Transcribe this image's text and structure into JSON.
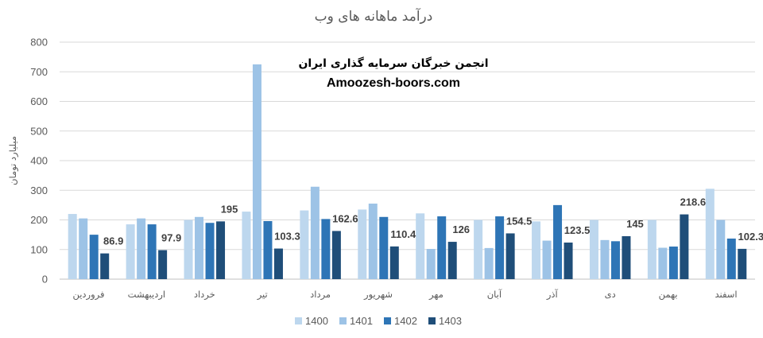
{
  "chart_data": {
    "type": "bar",
    "title": "درآمد ماهانه های وب",
    "ylabel": "میلیارد تومان",
    "xlabel": "",
    "ylim": [
      0,
      800
    ],
    "yticks": [
      0,
      100,
      200,
      300,
      400,
      500,
      600,
      700,
      800
    ],
    "grid": true,
    "legend_position": "bottom",
    "categories": [
      "فروردین",
      "اردیبهشت",
      "خرداد",
      "تیر",
      "مرداد",
      "شهریور",
      "مهر",
      "آبان",
      "آذر",
      "دی",
      "بهمن",
      "اسفند"
    ],
    "series": [
      {
        "name": "1400",
        "color": "#bdd7ee",
        "values": [
          220,
          185,
          200,
          228,
          232,
          235,
          222,
          200,
          195,
          200,
          200,
          305
        ]
      },
      {
        "name": "1401",
        "color": "#9dc3e6",
        "values": [
          205,
          205,
          210,
          725,
          312,
          255,
          102,
          105,
          130,
          132,
          106,
          200
        ]
      },
      {
        "name": "1402",
        "color": "#2e75b6",
        "values": [
          150,
          185,
          190,
          196,
          203,
          210,
          212,
          212,
          250,
          128,
          110,
          137
        ]
      },
      {
        "name": "1403",
        "color": "#1f4e79",
        "values": [
          86.9,
          97.9,
          195,
          103.3,
          162.6,
          110.4,
          126,
          154.5,
          123.5,
          145,
          218.6,
          102.3
        ]
      }
    ],
    "data_labels": {
      "series": "1403",
      "labels": [
        "86.9",
        "97.9",
        "195",
        "103.3",
        "162.6",
        "110.4",
        "126",
        "154.5",
        "123.5",
        "145",
        "218.6",
        "102.3"
      ]
    }
  },
  "watermark": {
    "line1": "انجمن خبرگان سرمایه گذاری ایران",
    "line2": "Amoozesh-boors.com"
  }
}
